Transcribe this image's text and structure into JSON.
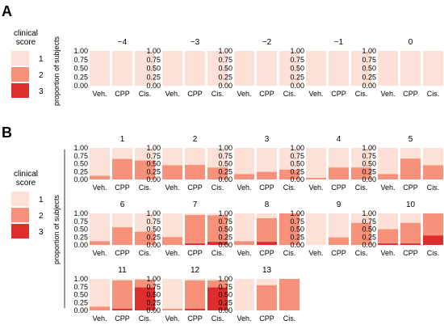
{
  "legend": {
    "title_line1": "clinical",
    "title_line2": "score",
    "items": [
      {
        "label": "1",
        "color": "#fde0d6"
      },
      {
        "label": "2",
        "color": "#f7917a"
      },
      {
        "label": "3",
        "color": "#de2d2d"
      }
    ]
  },
  "chart_data": [
    {
      "panel": "A",
      "type": "bar",
      "stacked": true,
      "ylabel": "proportion of subjects",
      "ylim": [
        0,
        1
      ],
      "yticks": [
        "1.00",
        "0.75",
        "0.50",
        "0.25",
        "0.00"
      ],
      "categories": [
        "Veh.",
        "CPP",
        "Cis."
      ],
      "series_names": [
        "1",
        "2",
        "3"
      ],
      "facets": [
        {
          "title": "−4",
          "values": {
            "2": [
              0,
              0,
              0
            ],
            "3": [
              0,
              0,
              0
            ]
          }
        },
        {
          "title": "−3",
          "values": {
            "2": [
              0,
              0,
              0
            ],
            "3": [
              0,
              0,
              0
            ]
          }
        },
        {
          "title": "−2",
          "values": {
            "2": [
              0,
              0,
              0
            ],
            "3": [
              0,
              0,
              0
            ]
          }
        },
        {
          "title": "−1",
          "values": {
            "2": [
              0,
              0,
              0
            ],
            "3": [
              0,
              0,
              0
            ]
          }
        },
        {
          "title": "0",
          "values": {
            "2": [
              0,
              0,
              0
            ],
            "3": [
              0,
              0,
              0
            ]
          }
        }
      ]
    },
    {
      "panel": "B",
      "type": "bar",
      "stacked": true,
      "ylabel": "proportion of subjects",
      "ylim": [
        0,
        1
      ],
      "yticks": [
        "1.00",
        "0.75",
        "0.50",
        "0.25",
        "0.00"
      ],
      "categories": [
        "Veh.",
        "CPP",
        "Cis."
      ],
      "series_names": [
        "1",
        "2",
        "3"
      ],
      "facets": [
        {
          "title": "1",
          "values": {
            "2": [
              0.12,
              0.65,
              0.6
            ],
            "3": [
              0,
              0,
              0
            ]
          }
        },
        {
          "title": "2",
          "values": {
            "2": [
              0.45,
              0.46,
              0.38
            ],
            "3": [
              0,
              0,
              0
            ]
          }
        },
        {
          "title": "3",
          "values": {
            "2": [
              0.17,
              0.24,
              0.31
            ],
            "3": [
              0,
              0,
              0
            ]
          }
        },
        {
          "title": "4",
          "values": {
            "2": [
              0.05,
              0.38,
              0.38
            ],
            "3": [
              0,
              0,
              0
            ]
          }
        },
        {
          "title": "5",
          "values": {
            "2": [
              0.17,
              0.66,
              0.45
            ],
            "3": [
              0,
              0,
              0
            ]
          }
        },
        {
          "title": "6",
          "values": {
            "2": [
              0.12,
              0.56,
              0.42
            ],
            "3": [
              0,
              0,
              0
            ]
          }
        },
        {
          "title": "7",
          "values": {
            "2": [
              0.25,
              0.9,
              0.84
            ],
            "3": [
              0,
              0.05,
              0.1
            ]
          }
        },
        {
          "title": "8",
          "values": {
            "2": [
              0.12,
              0.75,
              1.0
            ],
            "3": [
              0,
              0.1,
              0
            ]
          }
        },
        {
          "title": "9",
          "values": {
            "2": [
              0,
              0.24,
              0.7
            ],
            "3": [
              0,
              0,
              0
            ]
          }
        },
        {
          "title": "10",
          "values": {
            "2": [
              0.45,
              0.65,
              0.7
            ],
            "3": [
              0.05,
              0.05,
              0.3
            ]
          }
        },
        {
          "title": "11",
          "values": {
            "2": [
              0.12,
              0.9,
              0.25
            ],
            "3": [
              0,
              0.05,
              0.73
            ]
          }
        },
        {
          "title": "12",
          "values": {
            "2": [
              0.05,
              0.9,
              0.22
            ],
            "3": [
              0,
              0.05,
              0.73
            ]
          }
        },
        {
          "title": "13",
          "values": {
            "2": [
              0,
              0.8,
              1.0
            ],
            "3": [
              0,
              0,
              0
            ]
          }
        }
      ]
    }
  ]
}
